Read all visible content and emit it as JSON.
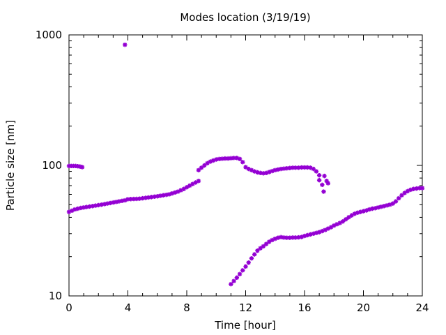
{
  "chart_data": {
    "type": "scatter",
    "title": "Modes location (3/19/19)",
    "xlabel": "Time [hour]",
    "ylabel": "Particle size [nm]",
    "xlim": [
      0,
      24
    ],
    "ylim": [
      10,
      1000
    ],
    "yscale": "log",
    "x_ticks": [
      0,
      4,
      8,
      12,
      16,
      20,
      24
    ],
    "x_tick_labels": [
      "0",
      "4",
      "8",
      "12",
      "16",
      "20",
      "24"
    ],
    "y_ticks": [
      10,
      100,
      1000
    ],
    "y_tick_labels": [
      "10",
      "100",
      "1000"
    ],
    "marker_color": "#9400d3",
    "grid": false,
    "legend": "none",
    "series": [
      {
        "points": [
          [
            0.0,
            44.0
          ],
          [
            0.2,
            45.0
          ],
          [
            0.4,
            46.0
          ],
          [
            0.6,
            46.6
          ],
          [
            0.8,
            47.2
          ],
          [
            1.0,
            47.6
          ],
          [
            1.2,
            48.0
          ],
          [
            1.4,
            48.4
          ],
          [
            1.6,
            48.8
          ],
          [
            1.8,
            49.2
          ],
          [
            2.0,
            49.6
          ],
          [
            2.2,
            50.0
          ],
          [
            2.4,
            50.5
          ],
          [
            2.6,
            51.0
          ],
          [
            2.8,
            51.5
          ],
          [
            3.0,
            52.0
          ],
          [
            3.2,
            52.5
          ],
          [
            3.4,
            53.0
          ],
          [
            3.6,
            53.5
          ],
          [
            3.8,
            54.0
          ],
          [
            4.0,
            55.0
          ],
          [
            4.2,
            55.2
          ],
          [
            4.4,
            55.3
          ],
          [
            4.6,
            55.4
          ],
          [
            4.8,
            55.6
          ],
          [
            5.0,
            56.0
          ],
          [
            5.2,
            56.4
          ],
          [
            5.4,
            56.8
          ],
          [
            5.6,
            57.2
          ],
          [
            5.8,
            57.6
          ],
          [
            6.0,
            58.0
          ],
          [
            6.2,
            58.5
          ],
          [
            6.4,
            59.0
          ],
          [
            6.6,
            59.5
          ],
          [
            6.8,
            60.0
          ],
          [
            7.0,
            61.0
          ],
          [
            7.2,
            62.0
          ],
          [
            7.4,
            63.0
          ],
          [
            7.6,
            64.5
          ],
          [
            7.8,
            66.0
          ],
          [
            8.0,
            68.0
          ],
          [
            8.2,
            70.0
          ],
          [
            8.4,
            72.0
          ],
          [
            8.6,
            74.0
          ],
          [
            8.8,
            76.0
          ]
        ]
      },
      {
        "points": [
          [
            0.0,
            99.0
          ],
          [
            0.15,
            99.0
          ],
          [
            0.3,
            99.0
          ],
          [
            0.45,
            99.0
          ],
          [
            0.6,
            98.5
          ],
          [
            0.75,
            98.0
          ],
          [
            0.9,
            97.0
          ]
        ]
      },
      {
        "points": [
          [
            3.8,
            840.0
          ]
        ]
      },
      {
        "points": [
          [
            8.8,
            92.0
          ],
          [
            9.0,
            96.0
          ],
          [
            9.2,
            100.0
          ],
          [
            9.4,
            104.0
          ],
          [
            9.6,
            107.0
          ],
          [
            9.8,
            109.0
          ],
          [
            10.0,
            111.0
          ],
          [
            10.2,
            112.0
          ],
          [
            10.4,
            112.5
          ],
          [
            10.6,
            113.0
          ],
          [
            10.8,
            113.0
          ],
          [
            11.0,
            113.5
          ],
          [
            11.2,
            114.0
          ],
          [
            11.4,
            114.0
          ],
          [
            11.6,
            112.0
          ],
          [
            11.8,
            106.0
          ],
          [
            12.0,
            97.0
          ],
          [
            12.2,
            94.0
          ],
          [
            12.4,
            92.0
          ],
          [
            12.6,
            90.0
          ],
          [
            12.8,
            88.5
          ],
          [
            13.0,
            87.5
          ],
          [
            13.2,
            87.0
          ],
          [
            13.4,
            87.5
          ],
          [
            13.6,
            89.0
          ],
          [
            13.8,
            90.5
          ],
          [
            14.0,
            92.0
          ],
          [
            14.2,
            93.0
          ],
          [
            14.4,
            94.0
          ],
          [
            14.6,
            94.5
          ],
          [
            14.8,
            95.0
          ],
          [
            15.0,
            95.5
          ],
          [
            15.2,
            96.0
          ],
          [
            15.4,
            96.0
          ],
          [
            15.6,
            96.0
          ],
          [
            15.8,
            96.5
          ],
          [
            16.0,
            96.5
          ],
          [
            16.2,
            96.5
          ],
          [
            16.4,
            96.0
          ],
          [
            16.6,
            94.0
          ],
          [
            16.8,
            90.0
          ],
          [
            17.0,
            84.0
          ]
        ]
      },
      {
        "points": [
          [
            17.0,
            77.0
          ],
          [
            17.2,
            71.0
          ],
          [
            17.3,
            63.0
          ],
          [
            17.35,
            83.0
          ],
          [
            17.5,
            76.0
          ],
          [
            17.6,
            73.0
          ]
        ]
      },
      {
        "points": [
          [
            11.0,
            12.3
          ],
          [
            11.2,
            13.0
          ],
          [
            11.4,
            13.8
          ],
          [
            11.6,
            14.7
          ],
          [
            11.8,
            15.7
          ],
          [
            12.0,
            16.8
          ],
          [
            12.2,
            18.0
          ],
          [
            12.4,
            19.4
          ],
          [
            12.6,
            20.8
          ],
          [
            12.8,
            22.2
          ],
          [
            13.0,
            23.2
          ],
          [
            13.2,
            24.0
          ],
          [
            13.4,
            25.0
          ],
          [
            13.6,
            26.0
          ],
          [
            13.8,
            26.8
          ],
          [
            14.0,
            27.4
          ],
          [
            14.2,
            27.9
          ],
          [
            14.4,
            28.2
          ],
          [
            14.6,
            28.0
          ],
          [
            14.8,
            27.9
          ],
          [
            15.0,
            27.9
          ],
          [
            15.2,
            28.0
          ],
          [
            15.4,
            28.0
          ],
          [
            15.6,
            28.1
          ],
          [
            15.8,
            28.3
          ],
          [
            16.0,
            28.8
          ],
          [
            16.2,
            29.2
          ],
          [
            16.4,
            29.6
          ],
          [
            16.6,
            30.0
          ],
          [
            16.8,
            30.4
          ],
          [
            17.0,
            30.8
          ],
          [
            17.2,
            31.4
          ],
          [
            17.4,
            32.0
          ],
          [
            17.6,
            32.8
          ],
          [
            17.8,
            33.6
          ],
          [
            18.0,
            34.6
          ],
          [
            18.2,
            35.4
          ],
          [
            18.4,
            36.2
          ],
          [
            18.6,
            37.2
          ],
          [
            18.8,
            38.6
          ],
          [
            19.0,
            40.0
          ],
          [
            19.2,
            41.4
          ],
          [
            19.4,
            42.6
          ],
          [
            19.6,
            43.4
          ],
          [
            19.8,
            44.0
          ],
          [
            20.0,
            44.6
          ],
          [
            20.2,
            45.2
          ],
          [
            20.4,
            46.0
          ],
          [
            20.6,
            46.6
          ],
          [
            20.8,
            47.0
          ],
          [
            21.0,
            47.6
          ],
          [
            21.2,
            48.2
          ],
          [
            21.4,
            48.8
          ],
          [
            21.6,
            49.4
          ],
          [
            21.8,
            50.0
          ],
          [
            22.0,
            51.0
          ],
          [
            22.2,
            53.0
          ],
          [
            22.4,
            56.0
          ],
          [
            22.6,
            59.0
          ],
          [
            22.8,
            61.5
          ],
          [
            23.0,
            63.5
          ],
          [
            23.2,
            65.0
          ],
          [
            23.4,
            66.0
          ],
          [
            23.6,
            66.5
          ],
          [
            23.8,
            67.0
          ],
          [
            24.0,
            67.0
          ]
        ]
      }
    ]
  }
}
